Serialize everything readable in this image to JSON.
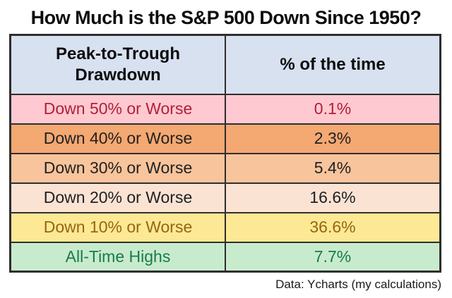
{
  "title": "How Much is the S&P 500 Down Since 1950?",
  "table": {
    "header": {
      "col1_line1": "Peak-to-Trough",
      "col1_line2": "Drawdown",
      "col2": "% of the time",
      "bg": "#d8e1f0",
      "fg": "#0d0d0d"
    },
    "rows": [
      {
        "label": "Down 50% or Worse",
        "value": "0.1%",
        "bg": "#ffc9d1",
        "fg": "#b12036"
      },
      {
        "label": "Down 40% or Worse",
        "value": "2.3%",
        "bg": "#f4a872",
        "fg": "#212121"
      },
      {
        "label": "Down 30% or Worse",
        "value": "5.4%",
        "bg": "#f8c49c",
        "fg": "#212121"
      },
      {
        "label": "Down 20% or Worse",
        "value": "16.6%",
        "bg": "#fbe3d4",
        "fg": "#212121"
      },
      {
        "label": "Down 10% or Worse",
        "value": "36.6%",
        "bg": "#fde895",
        "fg": "#96660e"
      },
      {
        "label": "All-Time Highs",
        "value": "7.7%",
        "bg": "#c8ebcd",
        "fg": "#1a7b4b"
      }
    ],
    "border_color": "#2e2e2e"
  },
  "footer": "Data: Ycharts (my calculations)",
  "chart_data": {
    "type": "table",
    "title": "How Much is the S&P 500 Down Since 1950?",
    "columns": [
      "Peak-to-Trough Drawdown",
      "% of the time"
    ],
    "rows": [
      [
        "Down 50% or Worse",
        0.1
      ],
      [
        "Down 40% or Worse",
        2.3
      ],
      [
        "Down 30% or Worse",
        5.4
      ],
      [
        "Down 20% or Worse",
        16.6
      ],
      [
        "Down 10% or Worse",
        36.6
      ],
      [
        "All-Time Highs",
        7.7
      ]
    ],
    "value_unit": "%",
    "source": "Data: Ycharts (my calculations)",
    "row_colors": [
      "#ffc9d1",
      "#f4a872",
      "#f8c49c",
      "#fbe3d4",
      "#fde895",
      "#c8ebcd"
    ]
  }
}
